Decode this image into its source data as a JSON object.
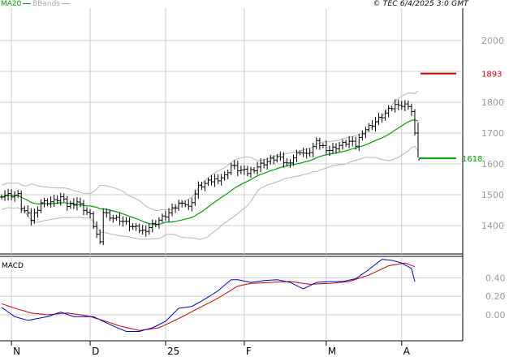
{
  "header": {
    "ma_label": "MA20",
    "bb_label": "BBands",
    "copyright": "© TEC 6/4/2025 3:0 GMT"
  },
  "colors": {
    "price": "#000000",
    "ma20": "#00a000",
    "bbands": "#b4b4b4",
    "macd": "#0000cc",
    "signal": "#cc0000",
    "resistance": "#cc0000",
    "support": "#00a000",
    "grid": "#cccccc",
    "axis_text": "#999999"
  },
  "chart_data": [
    {
      "type": "ohlc",
      "panel": "price",
      "x_ticks": [
        "N",
        "D",
        "25",
        "F",
        "M",
        "A"
      ],
      "y_ticks": [
        "1400",
        "1500",
        "1600",
        "1700",
        "1800",
        "2000"
      ],
      "ylim": [
        1320,
        2060
      ],
      "levels": [
        {
          "label": "1893",
          "value": 1893,
          "color": "#cc0000"
        },
        {
          "label": "1618",
          "value": 1618,
          "color": "#00a000"
        }
      ],
      "price_path": [
        [
          0,
          1500
        ],
        [
          5,
          1498
        ],
        [
          6,
          1460
        ],
        [
          9,
          1420
        ],
        [
          12,
          1475
        ],
        [
          16,
          1478
        ],
        [
          18,
          1492
        ],
        [
          20,
          1465
        ],
        [
          23,
          1478
        ],
        [
          27,
          1432
        ],
        [
          30,
          1340
        ],
        [
          31,
          1445
        ],
        [
          34,
          1425
        ],
        [
          36,
          1420
        ],
        [
          40,
          1395
        ],
        [
          43,
          1382
        ],
        [
          45,
          1395
        ],
        [
          47,
          1410
        ],
        [
          51,
          1440
        ],
        [
          55,
          1480
        ],
        [
          57,
          1458
        ],
        [
          60,
          1525
        ],
        [
          64,
          1545
        ],
        [
          68,
          1560
        ],
        [
          70,
          1595
        ],
        [
          72,
          1582
        ],
        [
          75,
          1572
        ],
        [
          79,
          1598
        ],
        [
          84,
          1622
        ],
        [
          87,
          1600
        ],
        [
          91,
          1642
        ],
        [
          93,
          1628
        ],
        [
          96,
          1668
        ],
        [
          100,
          1645
        ],
        [
          103,
          1660
        ],
        [
          106,
          1672
        ],
        [
          108,
          1660
        ],
        [
          110,
          1705
        ],
        [
          113,
          1728
        ],
        [
          116,
          1754
        ],
        [
          119,
          1782
        ],
        [
          121,
          1798
        ],
        [
          122,
          1788
        ],
        [
          124,
          1792
        ],
        [
          125,
          1770
        ],
        [
          127,
          1618
        ]
      ]
    },
    {
      "type": "line",
      "panel": "macd",
      "title": "MACD",
      "y_ticks": [
        "0.00",
        "0.20",
        "0.40"
      ],
      "ylim": [
        -0.22,
        0.72
      ],
      "macd_path": [
        [
          0,
          0.08
        ],
        [
          4,
          -0.02
        ],
        [
          8,
          -0.06
        ],
        [
          14,
          -0.02
        ],
        [
          18,
          0.03
        ],
        [
          22,
          -0.02
        ],
        [
          28,
          -0.02
        ],
        [
          34,
          -0.12
        ],
        [
          38,
          -0.18
        ],
        [
          42,
          -0.18
        ],
        [
          46,
          -0.14
        ],
        [
          50,
          -0.07
        ],
        [
          54,
          0.07
        ],
        [
          58,
          0.09
        ],
        [
          62,
          0.17
        ],
        [
          66,
          0.26
        ],
        [
          70,
          0.38
        ],
        [
          72,
          0.38
        ],
        [
          76,
          0.35
        ],
        [
          80,
          0.37
        ],
        [
          84,
          0.38
        ],
        [
          88,
          0.35
        ],
        [
          92,
          0.28
        ],
        [
          96,
          0.35
        ],
        [
          100,
          0.36
        ],
        [
          104,
          0.36
        ],
        [
          108,
          0.39
        ],
        [
          112,
          0.49
        ],
        [
          116,
          0.6
        ],
        [
          119,
          0.59
        ],
        [
          122,
          0.56
        ],
        [
          125,
          0.5
        ],
        [
          126,
          0.36
        ]
      ],
      "signal_path": [
        [
          0,
          0.12
        ],
        [
          5,
          0.06
        ],
        [
          9,
          0.02
        ],
        [
          14,
          0.0
        ],
        [
          20,
          0.02
        ],
        [
          26,
          -0.01
        ],
        [
          30,
          -0.05
        ],
        [
          36,
          -0.12
        ],
        [
          42,
          -0.17
        ],
        [
          48,
          -0.14
        ],
        [
          54,
          -0.04
        ],
        [
          60,
          0.07
        ],
        [
          66,
          0.18
        ],
        [
          72,
          0.31
        ],
        [
          76,
          0.34
        ],
        [
          82,
          0.35
        ],
        [
          88,
          0.36
        ],
        [
          94,
          0.33
        ],
        [
          100,
          0.34
        ],
        [
          106,
          0.36
        ],
        [
          112,
          0.43
        ],
        [
          118,
          0.53
        ],
        [
          123,
          0.56
        ],
        [
          126,
          0.52
        ]
      ]
    }
  ]
}
